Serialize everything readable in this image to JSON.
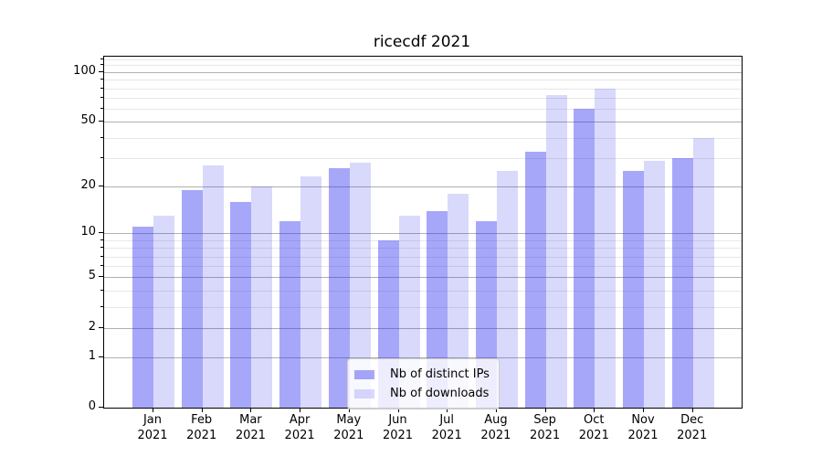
{
  "title": "ricecdf 2021",
  "chart_data": {
    "type": "bar",
    "title": "ricecdf 2021",
    "categories": [
      "Jan 2021",
      "Feb 2021",
      "Mar 2021",
      "Apr 2021",
      "May 2021",
      "Jun 2021",
      "Jul 2021",
      "Aug 2021",
      "Sep 2021",
      "Oct 2021",
      "Nov 2021",
      "Dec 2021"
    ],
    "series": [
      {
        "name": "Nb of distinct IPs",
        "color": "rgba(45,45,240,0.42)",
        "values": [
          11,
          19,
          16,
          12,
          26,
          9,
          14,
          12,
          33,
          60,
          25,
          30
        ]
      },
      {
        "name": "Nb of downloads",
        "color": "rgba(45,45,240,0.18)",
        "values": [
          13,
          27,
          20,
          23,
          28,
          13,
          18,
          25,
          73,
          80,
          29,
          40
        ]
      }
    ],
    "xlabel": "",
    "ylabel": "",
    "y_scale": "log1p",
    "ylim": [
      0,
      124
    ],
    "y_ticks": [
      100,
      50,
      20,
      10,
      5,
      2,
      1,
      0
    ],
    "y_minor_ticks": [
      3,
      4,
      6,
      7,
      8,
      9,
      30,
      40,
      60,
      70,
      80,
      90,
      110,
      120
    ],
    "grid": true,
    "legend_position": "lower center"
  },
  "colors": {
    "bar_dark": "rgba(45,45,240,0.42)",
    "bar_light": "rgba(45,45,240,0.18)",
    "grid_major": "#b0b0b0",
    "grid_minor": "#e7e7e7",
    "spine": "#000000",
    "legend_border": "#cccccc"
  }
}
